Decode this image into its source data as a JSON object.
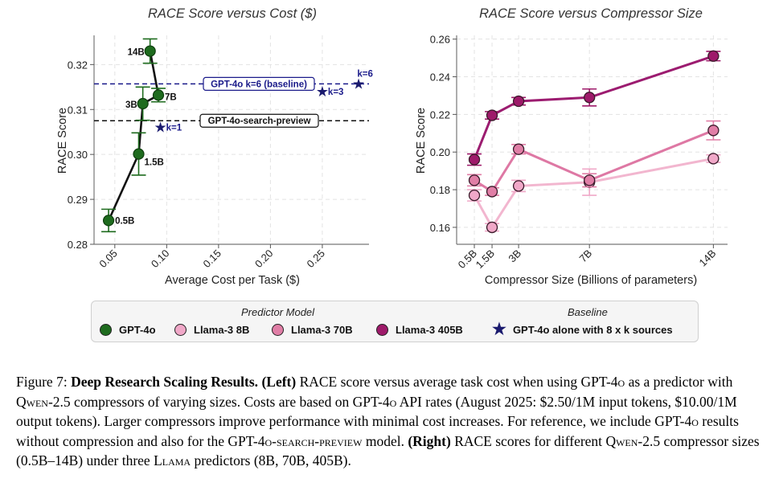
{
  "chart_data": [
    {
      "type": "line",
      "title": "RACE Score versus Cost ($)",
      "xlabel": "Average Cost per Task ($)",
      "ylabel": "RACE Score",
      "xlim": [
        0.03,
        0.295
      ],
      "ylim": [
        0.28,
        0.3265
      ],
      "xticks": [
        "0.05",
        "0.10",
        "0.15",
        "0.20",
        "0.25"
      ],
      "xtick_values": [
        0.05,
        0.1,
        0.15,
        0.2,
        0.25
      ],
      "yticks": [
        "0.28",
        "0.29",
        "0.30",
        "0.31",
        "0.32"
      ],
      "ytick_values": [
        0.28,
        0.29,
        0.3,
        0.31,
        0.32
      ],
      "grid": true,
      "series": [
        {
          "name": "GPT-4o",
          "color": "#1e6b1e",
          "points": [
            {
              "label": "0.5B",
              "x": 0.044,
              "y": 0.2853,
              "err": 0.0025
            },
            {
              "label": "1.5B",
              "x": 0.073,
              "y": 0.3001,
              "err": 0.0047
            },
            {
              "label": "3B",
              "x": 0.077,
              "y": 0.3113,
              "err": 0.0037
            },
            {
              "label": "7B",
              "x": 0.092,
              "y": 0.3132,
              "err": 0.0015
            },
            {
              "label": "14B",
              "x": 0.084,
              "y": 0.323,
              "err": 0.0027
            }
          ]
        }
      ],
      "baseline_points": [
        {
          "label": "k=1",
          "x": 0.094,
          "y": 0.306
        },
        {
          "label": "k=3",
          "x": 0.25,
          "y": 0.314
        },
        {
          "label": "k=6",
          "x": 0.285,
          "y": 0.3157
        }
      ],
      "reference_lines": [
        {
          "label": "GPT-4o k=6 (baseline)",
          "y": 0.3157,
          "color": "#1a1a8a",
          "style": "dashed"
        },
        {
          "label": "GPT-4o-search-preview",
          "y": 0.3075,
          "color": "#111111",
          "style": "dashed"
        }
      ]
    },
    {
      "type": "line",
      "title": "RACE Score versus Compressor Size",
      "xlabel": "Compressor Size (Billions of parameters)",
      "ylabel": "RACE Score",
      "xlim": [
        -0.5,
        14.8
      ],
      "ylim": [
        0.151,
        0.262
      ],
      "xticks": [
        "0.5B",
        "1.5B",
        "3B",
        "7B",
        "14B"
      ],
      "xtick_values": [
        0.5,
        1.5,
        3,
        7,
        14
      ],
      "yticks": [
        "0.16",
        "0.18",
        "0.20",
        "0.22",
        "0.24",
        "0.26"
      ],
      "ytick_values": [
        0.16,
        0.18,
        0.2,
        0.22,
        0.24,
        0.26
      ],
      "grid": true,
      "x": [
        0.5,
        1.5,
        3,
        7,
        14
      ],
      "series": [
        {
          "name": "Llama-3 8B",
          "color": "#f0a8c8",
          "line": "#f2b6cf",
          "values": [
            0.177,
            0.16,
            0.182,
            0.184,
            0.1965
          ],
          "errs": [
            0.003,
            0.002,
            0.003,
            0.007,
            0.002
          ]
        },
        {
          "name": "Llama-3 70B",
          "color": "#e07ea6",
          "line": "#de78a4",
          "values": [
            0.185,
            0.179,
            0.2015,
            0.185,
            0.2115
          ],
          "errs": [
            0.003,
            0.002,
            0.0025,
            0.0035,
            0.005
          ]
        },
        {
          "name": "Llama-3 405B",
          "color": "#9e1a6a",
          "line": "#9c1c70",
          "values": [
            0.196,
            0.2195,
            0.227,
            0.229,
            0.251
          ],
          "errs": [
            0.003,
            0.002,
            0.002,
            0.0045,
            0.0025
          ]
        }
      ]
    }
  ],
  "legend": {
    "predictor_heading": "Predictor Model",
    "baseline_heading": "Baseline",
    "items": [
      {
        "label": "GPT-4o",
        "color": "#1e6b1e"
      },
      {
        "label": "Llama-3 8B",
        "color": "#f0a8c8"
      },
      {
        "label": "Llama-3 70B",
        "color": "#e07ea6"
      },
      {
        "label": "Llama-3 405B",
        "color": "#9e1a6a"
      }
    ],
    "baseline_label": "GPT-4o alone with 8 x k sources",
    "baseline_color": "#1a1a6e"
  },
  "caption": {
    "fig_label": "Figure 7: ",
    "title": "Deep Research Scaling Results.",
    "left_tag": "(Left)",
    "text1": " RACE score versus average task cost when using GPT-4",
    "o1": "o",
    "text2": " as a predictor with ",
    "qwen1": "Qwen",
    "text3": "-2.5 compressors of varying sizes. Costs are based on GPT-4",
    "o2": "o",
    "text4": " API rates (August 2025: $2.50/1M input tokens, $10.00/1M output tokens). Larger compressors improve performance with minimal cost increases. For reference, we include GPT-4",
    "o3": "o",
    "text5": " results without compression and also for the GPT-4",
    "sp": "o-search-preview",
    "text6": " model. ",
    "right_tag": "(Right)",
    "text7": " RACE scores for different ",
    "qwen2": "Qwen",
    "text8": "-2.5 compressor sizes (0.5B–14B) under three ",
    "llama": "Llama",
    "text9": " predictors (8B, 70B, 405B)."
  }
}
